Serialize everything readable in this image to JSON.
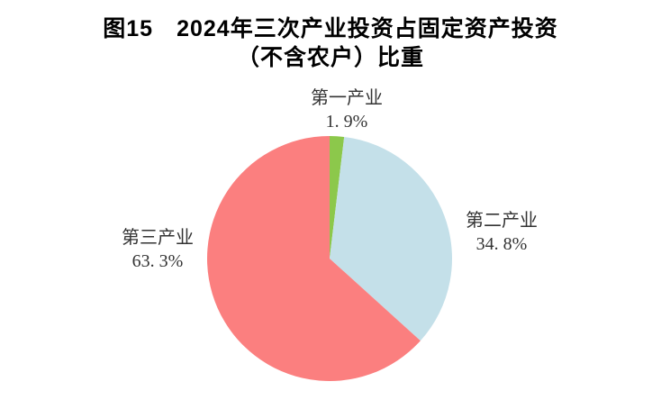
{
  "title": {
    "line1": "图15　2024年三次产业投资占固定资产投资",
    "line2": "（不含农户）比重"
  },
  "chart_data": {
    "type": "pie",
    "title": "图15 2024年三次产业投资占固定资产投资（不含农户）比重",
    "categories": [
      "第一产业",
      "第二产业",
      "第三产业"
    ],
    "values": [
      1.9,
      34.8,
      63.3
    ],
    "unit": "%",
    "start_angle": "12-o'clock",
    "direction": "clockwise",
    "legend": "none-direct-labels",
    "background_color": "#ffffff",
    "slices": [
      {
        "id": "primary-industry",
        "label": "第一产业",
        "value": 1.9,
        "display_value": "1. 9%",
        "color": "#8CC84B",
        "label_position": "top"
      },
      {
        "id": "secondary-industry",
        "label": "第二产业",
        "value": 34.8,
        "display_value": "34. 8%",
        "color": "#C4E0E9",
        "label_position": "right"
      },
      {
        "id": "tertiary-industry",
        "label": "第三产业",
        "value": 63.3,
        "display_value": "63. 3%",
        "color": "#FB7F7F",
        "label_position": "left"
      }
    ]
  }
}
